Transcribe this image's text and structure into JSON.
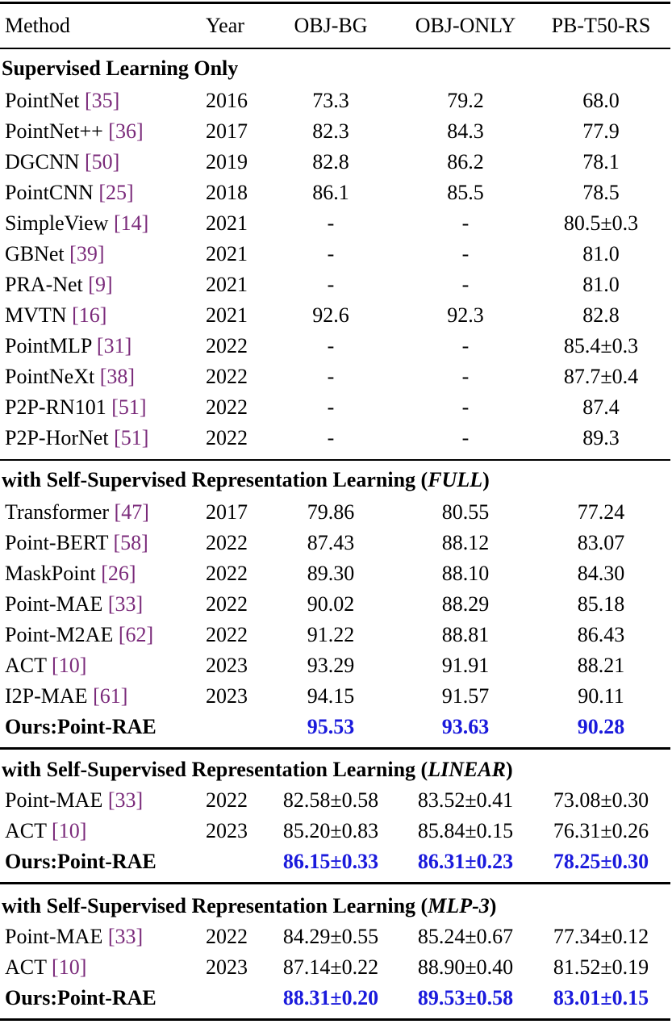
{
  "header": {
    "method": "Method",
    "year": "Year",
    "obj_bg": "OBJ-BG",
    "obj_only": "OBJ-ONLY",
    "pb_t50_rs": "PB-T50-RS"
  },
  "sections": [
    {
      "title": "Supervised Learning Only",
      "title_mode": "",
      "rows": [
        {
          "name": "PointNet",
          "cite": "35",
          "year": "2016",
          "bg": "73.3",
          "only": "79.2",
          "rs": "68.0"
        },
        {
          "name": "PointNet++",
          "cite": "36",
          "year": "2017",
          "bg": "82.3",
          "only": "84.3",
          "rs": "77.9"
        },
        {
          "name": "DGCNN",
          "cite": "50",
          "year": "2019",
          "bg": "82.8",
          "only": "86.2",
          "rs": "78.1"
        },
        {
          "name": "PointCNN",
          "cite": "25",
          "year": "2018",
          "bg": "86.1",
          "only": "85.5",
          "rs": "78.5"
        },
        {
          "name": "SimpleView",
          "cite": "14",
          "year": "2021",
          "bg": "-",
          "only": "-",
          "rs": "80.5±0.3"
        },
        {
          "name": "GBNet",
          "cite": "39",
          "year": "2021",
          "bg": "-",
          "only": "-",
          "rs": "81.0"
        },
        {
          "name": "PRA-Net",
          "cite": "9",
          "year": "2021",
          "bg": "-",
          "only": "-",
          "rs": "81.0"
        },
        {
          "name": "MVTN",
          "cite": "16",
          "year": "2021",
          "bg": "92.6",
          "only": "92.3",
          "rs": "82.8"
        },
        {
          "name": "PointMLP",
          "cite": "31",
          "year": "2022",
          "bg": "-",
          "only": "-",
          "rs": "85.4±0.3"
        },
        {
          "name": "PointNeXt",
          "cite": "38",
          "year": "2022",
          "bg": "-",
          "only": "-",
          "rs": "87.7±0.4"
        },
        {
          "name": "P2P-RN101",
          "cite": "51",
          "year": "2022",
          "bg": "-",
          "only": "-",
          "rs": "87.4"
        },
        {
          "name": "P2P-HorNet",
          "cite": "51",
          "year": "2022",
          "bg": "-",
          "only": "-",
          "rs": "89.3"
        }
      ]
    },
    {
      "title": "with Self-Supervised Representation Learning (",
      "title_mode": "FULL",
      "title_end": ")",
      "rows": [
        {
          "name": "Transformer",
          "cite": "47",
          "year": "2017",
          "bg": "79.86",
          "only": "80.55",
          "rs": "77.24"
        },
        {
          "name": "Point-BERT",
          "cite": "58",
          "year": "2022",
          "bg": "87.43",
          "only": "88.12",
          "rs": "83.07"
        },
        {
          "name": "MaskPoint",
          "cite": "26",
          "year": "2022",
          "bg": "89.30",
          "only": "88.10",
          "rs": "84.30"
        },
        {
          "name": "Point-MAE",
          "cite": "33",
          "year": "2022",
          "bg": "90.02",
          "only": "88.29",
          "rs": "85.18"
        },
        {
          "name": "Point-M2AE",
          "cite": "62",
          "year": "2022",
          "bg": "91.22",
          "only": "88.81",
          "rs": "86.43"
        },
        {
          "name": "ACT",
          "cite": "10",
          "year": "2023",
          "bg": "93.29",
          "only": "91.91",
          "rs": "88.21"
        },
        {
          "name": "I2P-MAE",
          "cite": "61",
          "year": "2023",
          "bg": "94.15",
          "only": "91.57",
          "rs": "90.11"
        },
        {
          "name": "Ours:Point-RAE",
          "cite": "",
          "year": "",
          "bg": "95.53",
          "only": "93.63",
          "rs": "90.28",
          "ours": true
        }
      ]
    },
    {
      "title": "with Self-Supervised Representation Learning (",
      "title_mode": "LINEAR",
      "title_end": ")",
      "rows": [
        {
          "name": "Point-MAE",
          "cite": "33",
          "year": "2022",
          "bg": "82.58±0.58",
          "only": "83.52±0.41",
          "rs": "73.08±0.30"
        },
        {
          "name": "ACT",
          "cite": "10",
          "year": "2023",
          "bg": "85.20±0.83",
          "only": "85.84±0.15",
          "rs": "76.31±0.26"
        },
        {
          "name": "Ours:Point-RAE",
          "cite": "",
          "year": "",
          "bg": "86.15±0.33",
          "only": "86.31±0.23",
          "rs": "78.25±0.30",
          "ours": true
        }
      ]
    },
    {
      "title": "with Self-Supervised Representation Learning (",
      "title_mode": "MLP-3",
      "title_end": ")",
      "rows": [
        {
          "name": "Point-MAE",
          "cite": "33",
          "year": "2022",
          "bg": "84.29±0.55",
          "only": "85.24±0.67",
          "rs": "77.34±0.12"
        },
        {
          "name": "ACT",
          "cite": "10",
          "year": "2023",
          "bg": "87.14±0.22",
          "only": "88.90±0.40",
          "rs": "81.52±0.19"
        },
        {
          "name": "Ours:Point-RAE",
          "cite": "",
          "year": "",
          "bg": "88.31±0.20",
          "only": "89.53±0.58",
          "rs": "83.01±0.15",
          "ours": true
        }
      ]
    }
  ],
  "colors": {
    "citation": "#7a2a7a",
    "best": "#1a1adc"
  }
}
